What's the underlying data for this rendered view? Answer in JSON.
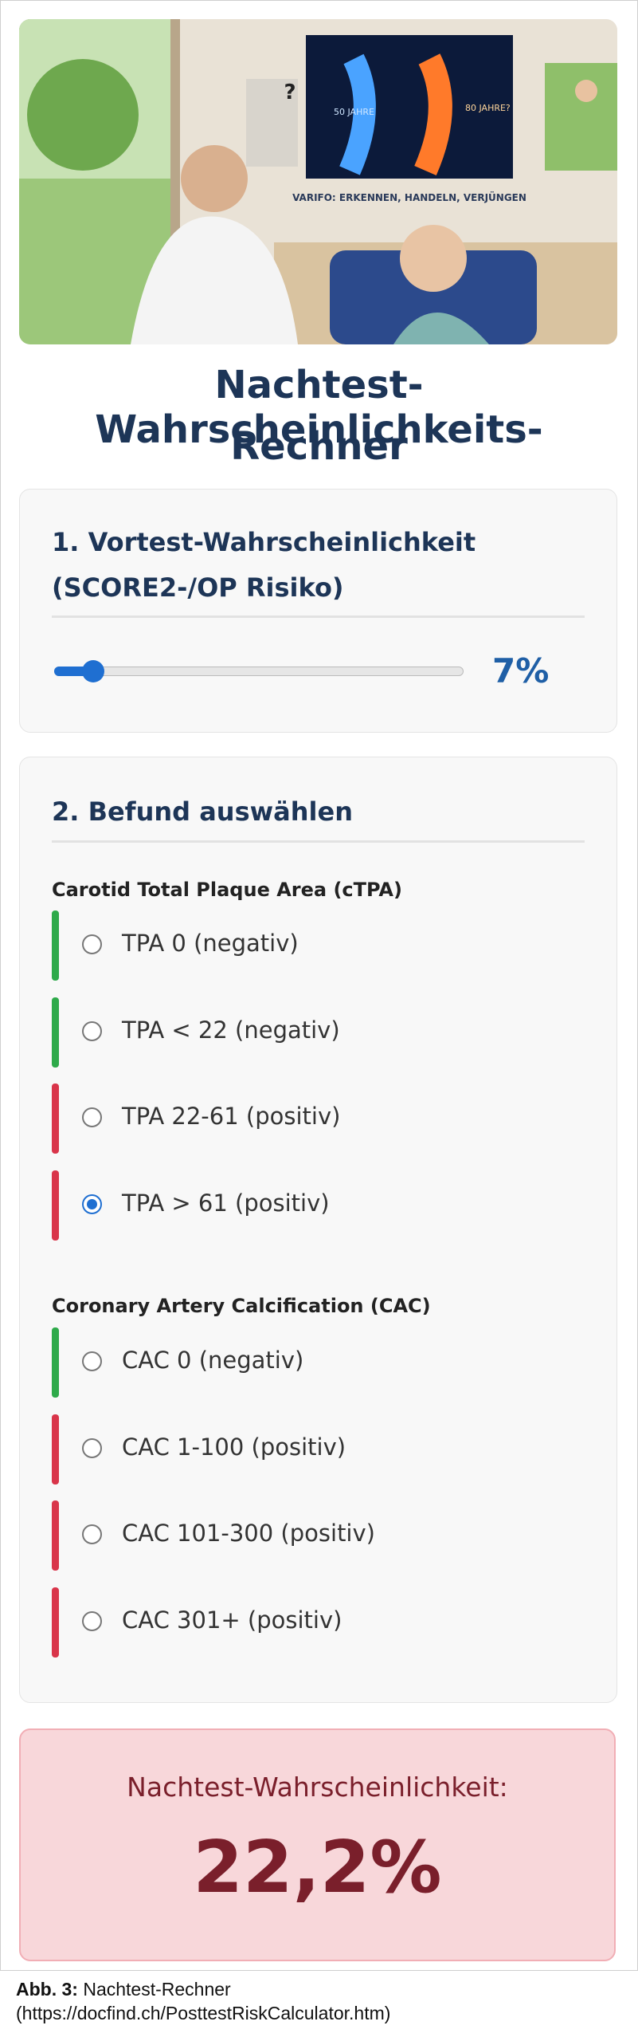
{
  "hero": {
    "poster_left": "50 JAHRE",
    "poster_right": "80 JAHRE?",
    "poster_caption": "VARIFO: ERKENNEN, HANDELN, VERJÜNGEN",
    "question": "?"
  },
  "title": [
    "Nachtest-Wahrscheinlichkeits-",
    "Rechner"
  ],
  "pretest": {
    "heading": [
      "1. Vortest-Wahrscheinlichkeit",
      "(SCORE2-/OP Risiko)"
    ],
    "value_label": "7%"
  },
  "findings": {
    "heading": "2. Befund auswählen",
    "groups": [
      {
        "title": "Carotid Total Plaque Area (cTPA)",
        "options": [
          {
            "label": "TPA 0 (negativ)",
            "color": "#2eaa4a",
            "selected": false
          },
          {
            "label": "TPA < 22 (negativ)",
            "color": "#2eaa4a",
            "selected": false
          },
          {
            "label": "TPA 22-61 (positiv)",
            "color": "#d9354a",
            "selected": false
          },
          {
            "label": "TPA > 61 (positiv)",
            "color": "#d9354a",
            "selected": true
          }
        ]
      },
      {
        "title": "Coronary Artery Calcification (CAC)",
        "options": [
          {
            "label": "CAC 0 (negativ)",
            "color": "#2eaa4a",
            "selected": false
          },
          {
            "label": "CAC 1-100 (positiv)",
            "color": "#d9354a",
            "selected": false
          },
          {
            "label": "CAC 101-300 (positiv)",
            "color": "#d9354a",
            "selected": false
          },
          {
            "label": "CAC 301+ (positiv)",
            "color": "#d9354a",
            "selected": false
          }
        ]
      }
    ]
  },
  "result": {
    "label": "Nachtest-Wahrscheinlichkeit:",
    "value": "22,2%"
  },
  "caption": {
    "prefix": "Abb. 3:",
    "text": "Nachtest-Rechner",
    "url": "(https://docfind.ch/PosttestRiskCalculator.htm)"
  }
}
